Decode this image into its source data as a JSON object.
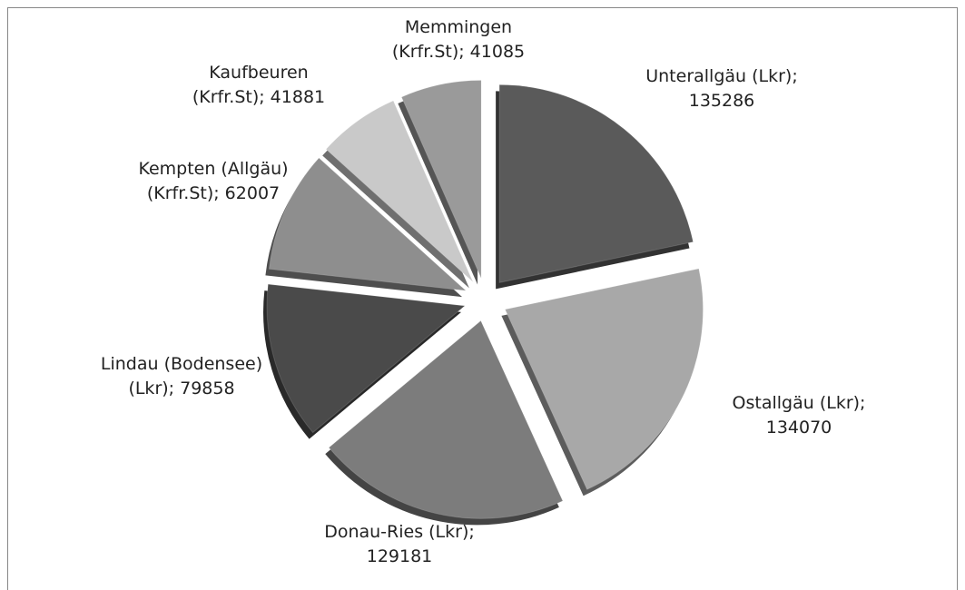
{
  "chart_data": {
    "type": "pie",
    "values": [
      135286,
      134070,
      129181,
      79858,
      62007,
      41881,
      41085
    ],
    "value_labels": [
      "Unterallgäu (Lkr); 135286",
      "Ostallgäu (Lkr); 134070",
      "Donau-Ries (Lkr); 129181",
      "Lindau (Bodensee) (Lkr); 79858",
      "Kempten (Allgäu) (Krfr.St); 62007",
      "Kaufbeuren (Krfr.St); 41881",
      "Memmingen (Krfr.St); 41085"
    ],
    "colors": [
      "#5a5a5a",
      "#a8a8a8",
      "#7c7c7c",
      "#4a4a4a",
      "#8e8e8e",
      "#c9c9c9",
      "#9a9a9a"
    ]
  }
}
